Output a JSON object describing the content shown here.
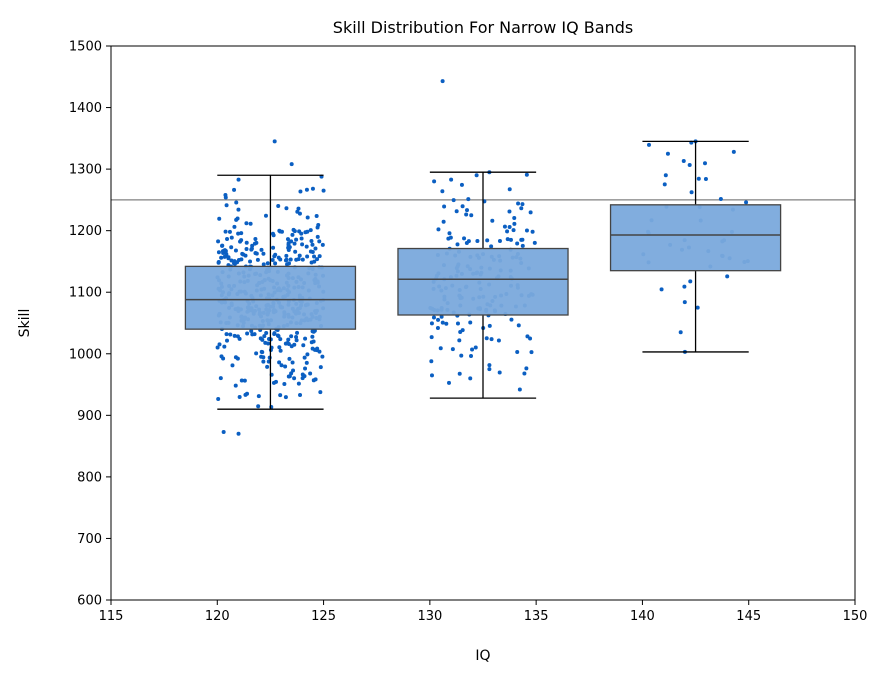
{
  "chart_data": {
    "type": "box",
    "title": "Skill Distribution For Narrow IQ Bands",
    "xlabel": "IQ",
    "ylabel": "Skill",
    "xlim": [
      115,
      150
    ],
    "ylim": [
      600,
      1500
    ],
    "xticks": [
      115,
      120,
      125,
      130,
      135,
      140,
      145,
      150
    ],
    "yticks": [
      600,
      700,
      800,
      900,
      1000,
      1100,
      1200,
      1300,
      1400,
      1500
    ],
    "reference_line_y": 1250,
    "grid": false,
    "colors": {
      "box_fill": "#7aa9dc",
      "box_edge": "#444444",
      "point": "#0b5fc2",
      "reference_line": "#808080"
    },
    "boxes": [
      {
        "center": 122.5,
        "width": 8,
        "whisker_low": 910,
        "q1": 1040,
        "median": 1088,
        "q3": 1142,
        "whisker_high": 1290,
        "jitter_range": [
          120,
          125
        ],
        "point_count": 480
      },
      {
        "center": 132.5,
        "width": 8,
        "whisker_low": 928,
        "q1": 1063,
        "median": 1121,
        "q3": 1171,
        "whisker_high": 1295,
        "jitter_range": [
          130,
          135
        ],
        "point_count": 190
      },
      {
        "center": 142.5,
        "width": 8,
        "whisker_low": 1003,
        "q1": 1135,
        "median": 1193,
        "q3": 1242,
        "whisker_high": 1345,
        "jitter_range": [
          140,
          145
        ],
        "point_count": 38
      }
    ],
    "outliers": [
      {
        "x": 120.3,
        "y": 873
      },
      {
        "x": 121.0,
        "y": 870
      },
      {
        "x": 122.7,
        "y": 1345
      },
      {
        "x": 123.5,
        "y": 1308
      },
      {
        "x": 121.0,
        "y": 1283
      },
      {
        "x": 124.5,
        "y": 1268
      },
      {
        "x": 125.0,
        "y": 1265
      },
      {
        "x": 130.6,
        "y": 1443
      },
      {
        "x": 132.8,
        "y": 1295
      },
      {
        "x": 132.2,
        "y": 1290
      },
      {
        "x": 131.0,
        "y": 1283
      },
      {
        "x": 130.2,
        "y": 1280
      },
      {
        "x": 131.9,
        "y": 960
      },
      {
        "x": 132.8,
        "y": 975
      },
      {
        "x": 130.1,
        "y": 965
      },
      {
        "x": 142.5,
        "y": 1345
      },
      {
        "x": 142.3,
        "y": 1343
      },
      {
        "x": 141.2,
        "y": 1325
      },
      {
        "x": 144.3,
        "y": 1328
      },
      {
        "x": 141.1,
        "y": 1290
      },
      {
        "x": 142.0,
        "y": 1003
      },
      {
        "x": 141.8,
        "y": 1035
      },
      {
        "x": 142.6,
        "y": 1075
      }
    ]
  }
}
